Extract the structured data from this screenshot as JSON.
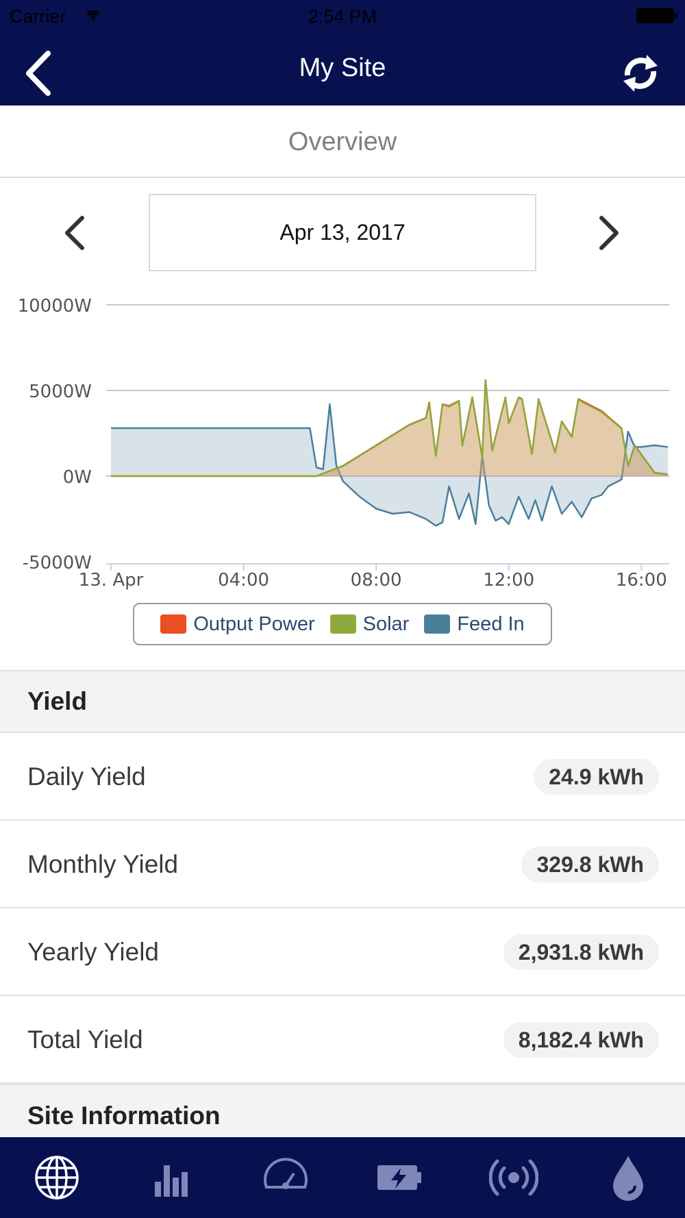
{
  "status_bar": {
    "carrier": "Carrier",
    "time": "2:54 PM"
  },
  "header": {
    "title": "My Site",
    "back_icon": "chevron-left-icon",
    "refresh_icon": "refresh-icon"
  },
  "overview": {
    "label": "Overview"
  },
  "date_nav": {
    "date": "Apr 13, 2017",
    "prev_icon": "chevron-left-icon",
    "next_icon": "chevron-right-icon"
  },
  "chart_data": {
    "type": "area",
    "title": "",
    "xlabel": "",
    "ylabel": "",
    "x_ticks": [
      "13. Apr",
      "04:00",
      "08:00",
      "12:00",
      "16:00"
    ],
    "y_ticks": [
      "10000W",
      "5000W",
      "0W",
      "-5000W"
    ],
    "ylim": [
      -5000,
      10000
    ],
    "xlim_hours": [
      0,
      16.8
    ],
    "legend_position": "bottom",
    "series": [
      {
        "name": "Output Power",
        "color": "#e8501e",
        "x": [
          0,
          6.2,
          7,
          8,
          9,
          9.5,
          9.6,
          9.8,
          10,
          10.2,
          10.5,
          10.6,
          10.9,
          11.2,
          11.3,
          11.5,
          11.9,
          12,
          12.3,
          12.4,
          12.7,
          12.9,
          13.4,
          13.6,
          13.9,
          14.1,
          14.2,
          14.8,
          15.4,
          15.6,
          15.8,
          16.4,
          16.8
        ],
        "values": [
          0,
          0,
          600,
          1800,
          3000,
          3400,
          4300,
          1200,
          4200,
          4100,
          4400,
          1800,
          4600,
          1100,
          5600,
          1500,
          4600,
          3100,
          4600,
          4500,
          1300,
          4500,
          1400,
          3200,
          2300,
          4500,
          4400,
          3800,
          2800,
          600,
          1800,
          200,
          100
        ]
      },
      {
        "name": "Solar",
        "color": "#8faa3c",
        "x": [
          0,
          6.2,
          7,
          8,
          9,
          9.5,
          9.6,
          9.8,
          10,
          10.2,
          10.5,
          10.6,
          10.9,
          11.2,
          11.3,
          11.5,
          11.9,
          12,
          12.3,
          12.4,
          12.7,
          12.9,
          13.4,
          13.6,
          13.9,
          14.1,
          14.2,
          14.8,
          15.4,
          15.6,
          15.8,
          16.4,
          16.8
        ],
        "values": [
          0,
          0,
          580,
          1780,
          2980,
          3380,
          4250,
          1180,
          4180,
          4050,
          4380,
          1780,
          4580,
          1080,
          5550,
          1480,
          4580,
          3080,
          4580,
          4480,
          1280,
          4480,
          1380,
          3180,
          2280,
          4480,
          4350,
          3750,
          2780,
          580,
          1780,
          180,
          90
        ]
      },
      {
        "name": "Feed In",
        "color": "#4a7f9c",
        "x": [
          0,
          6,
          6.2,
          6.4,
          6.6,
          6.8,
          7,
          7.5,
          8,
          8.5,
          9,
          9.5,
          9.8,
          10,
          10.2,
          10.5,
          10.8,
          11,
          11.2,
          11.4,
          11.6,
          11.8,
          12,
          12.3,
          12.6,
          12.8,
          13,
          13.3,
          13.6,
          13.9,
          14.2,
          14.5,
          14.8,
          15,
          15.4,
          15.6,
          15.8,
          16,
          16.4,
          16.8
        ],
        "values": [
          2800,
          2800,
          500,
          400,
          4200,
          600,
          -300,
          -1200,
          -1900,
          -2200,
          -2100,
          -2500,
          -2900,
          -2700,
          -600,
          -2500,
          -1000,
          -2800,
          1200,
          -1700,
          -2600,
          -2400,
          -2800,
          -1200,
          -2500,
          -1400,
          -2600,
          -600,
          -2200,
          -1500,
          -2400,
          -1300,
          -1100,
          -600,
          -200,
          2600,
          1700,
          1700,
          1800,
          1700
        ]
      }
    ]
  },
  "yield_section": {
    "title": "Yield",
    "rows": [
      {
        "label": "Daily Yield",
        "value": "24.9 kWh"
      },
      {
        "label": "Monthly Yield",
        "value": "329.8 kWh"
      },
      {
        "label": "Yearly Yield",
        "value": "2,931.8 kWh"
      },
      {
        "label": "Total Yield",
        "value": "8,182.4 kWh"
      }
    ]
  },
  "site_info_section": {
    "title": "Site Information"
  },
  "tabbar": {
    "tabs": [
      {
        "icon": "globe-icon",
        "active": true
      },
      {
        "icon": "bar-chart-icon",
        "active": false
      },
      {
        "icon": "gauge-icon",
        "active": false
      },
      {
        "icon": "battery-icon",
        "active": false
      },
      {
        "icon": "broadcast-icon",
        "active": false
      },
      {
        "icon": "water-drop-icon",
        "active": false
      }
    ],
    "active_color": "#ffffff",
    "inactive_color": "#7f86b8"
  }
}
